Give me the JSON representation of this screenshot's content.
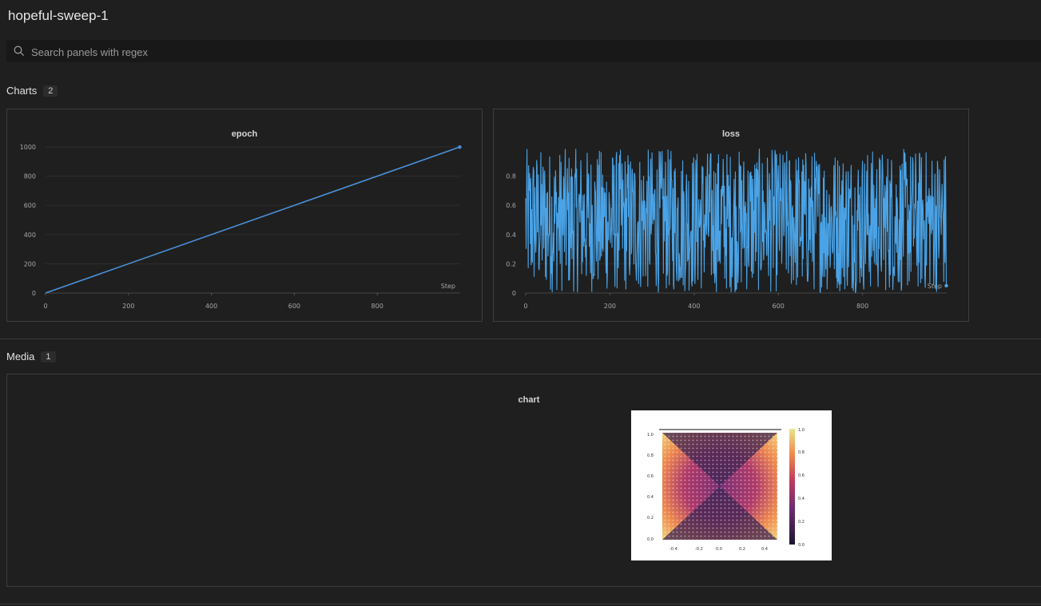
{
  "run": {
    "title": "hopeful-sweep-1"
  },
  "search": {
    "placeholder": "Search panels with regex",
    "icon": "search-icon"
  },
  "sections": {
    "charts": {
      "label": "Charts",
      "count": "2"
    },
    "media": {
      "label": "Media",
      "count": "1"
    }
  },
  "panels": {
    "epoch": {
      "title": "epoch",
      "x_label": "Step"
    },
    "loss": {
      "title": "loss",
      "x_label": "Step"
    },
    "media": {
      "title": "chart"
    }
  },
  "chart_data": [
    {
      "type": "line",
      "title": "epoch",
      "xlabel": "Step",
      "ylabel": "",
      "xlim": [
        0,
        1000
      ],
      "ylim": [
        0,
        1000
      ],
      "x_ticks": [
        0,
        200,
        400,
        600,
        800
      ],
      "y_ticks": [
        0,
        200,
        400,
        600,
        800,
        1000
      ],
      "series": [
        {
          "x": [
            0,
            999
          ],
          "y": [
            0,
            999
          ],
          "color": "#4a90d9"
        }
      ],
      "grid": true
    },
    {
      "type": "line",
      "title": "loss",
      "xlabel": "Step",
      "ylabel": "",
      "xlim": [
        0,
        1000
      ],
      "ylim": [
        0,
        1
      ],
      "x_ticks": [
        0,
        200,
        400,
        600,
        800
      ],
      "y_ticks": [
        0,
        0.2,
        0.4,
        0.6,
        0.8
      ],
      "y_tick_labels": [
        "0",
        "0.2",
        "0.4",
        "0.6",
        "0.8"
      ],
      "series": [
        {
          "x_range": [
            0,
            999
          ],
          "y_range": [
            0.0,
            0.99
          ],
          "points": 1000,
          "last_value": 0.05,
          "color": "#4aa3e6"
        }
      ],
      "grid": true
    }
  ],
  "colors": {
    "line": "#4a90d9",
    "loss_line": "#4aa3e6",
    "background": "#1f1f1f"
  }
}
